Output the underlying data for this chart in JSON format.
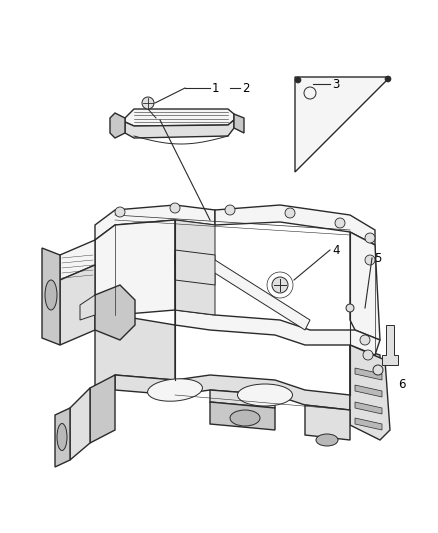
{
  "bg_color": "#ffffff",
  "line_color": "#333333",
  "label_color": "#000000",
  "figsize": [
    4.38,
    5.33
  ],
  "dpi": 100,
  "stroke_color": "#2a2a2a",
  "light_fill": "#f5f5f5",
  "mid_fill": "#e0e0e0",
  "dark_fill": "#c8c8c8",
  "shadow_fill": "#b8b8b8"
}
